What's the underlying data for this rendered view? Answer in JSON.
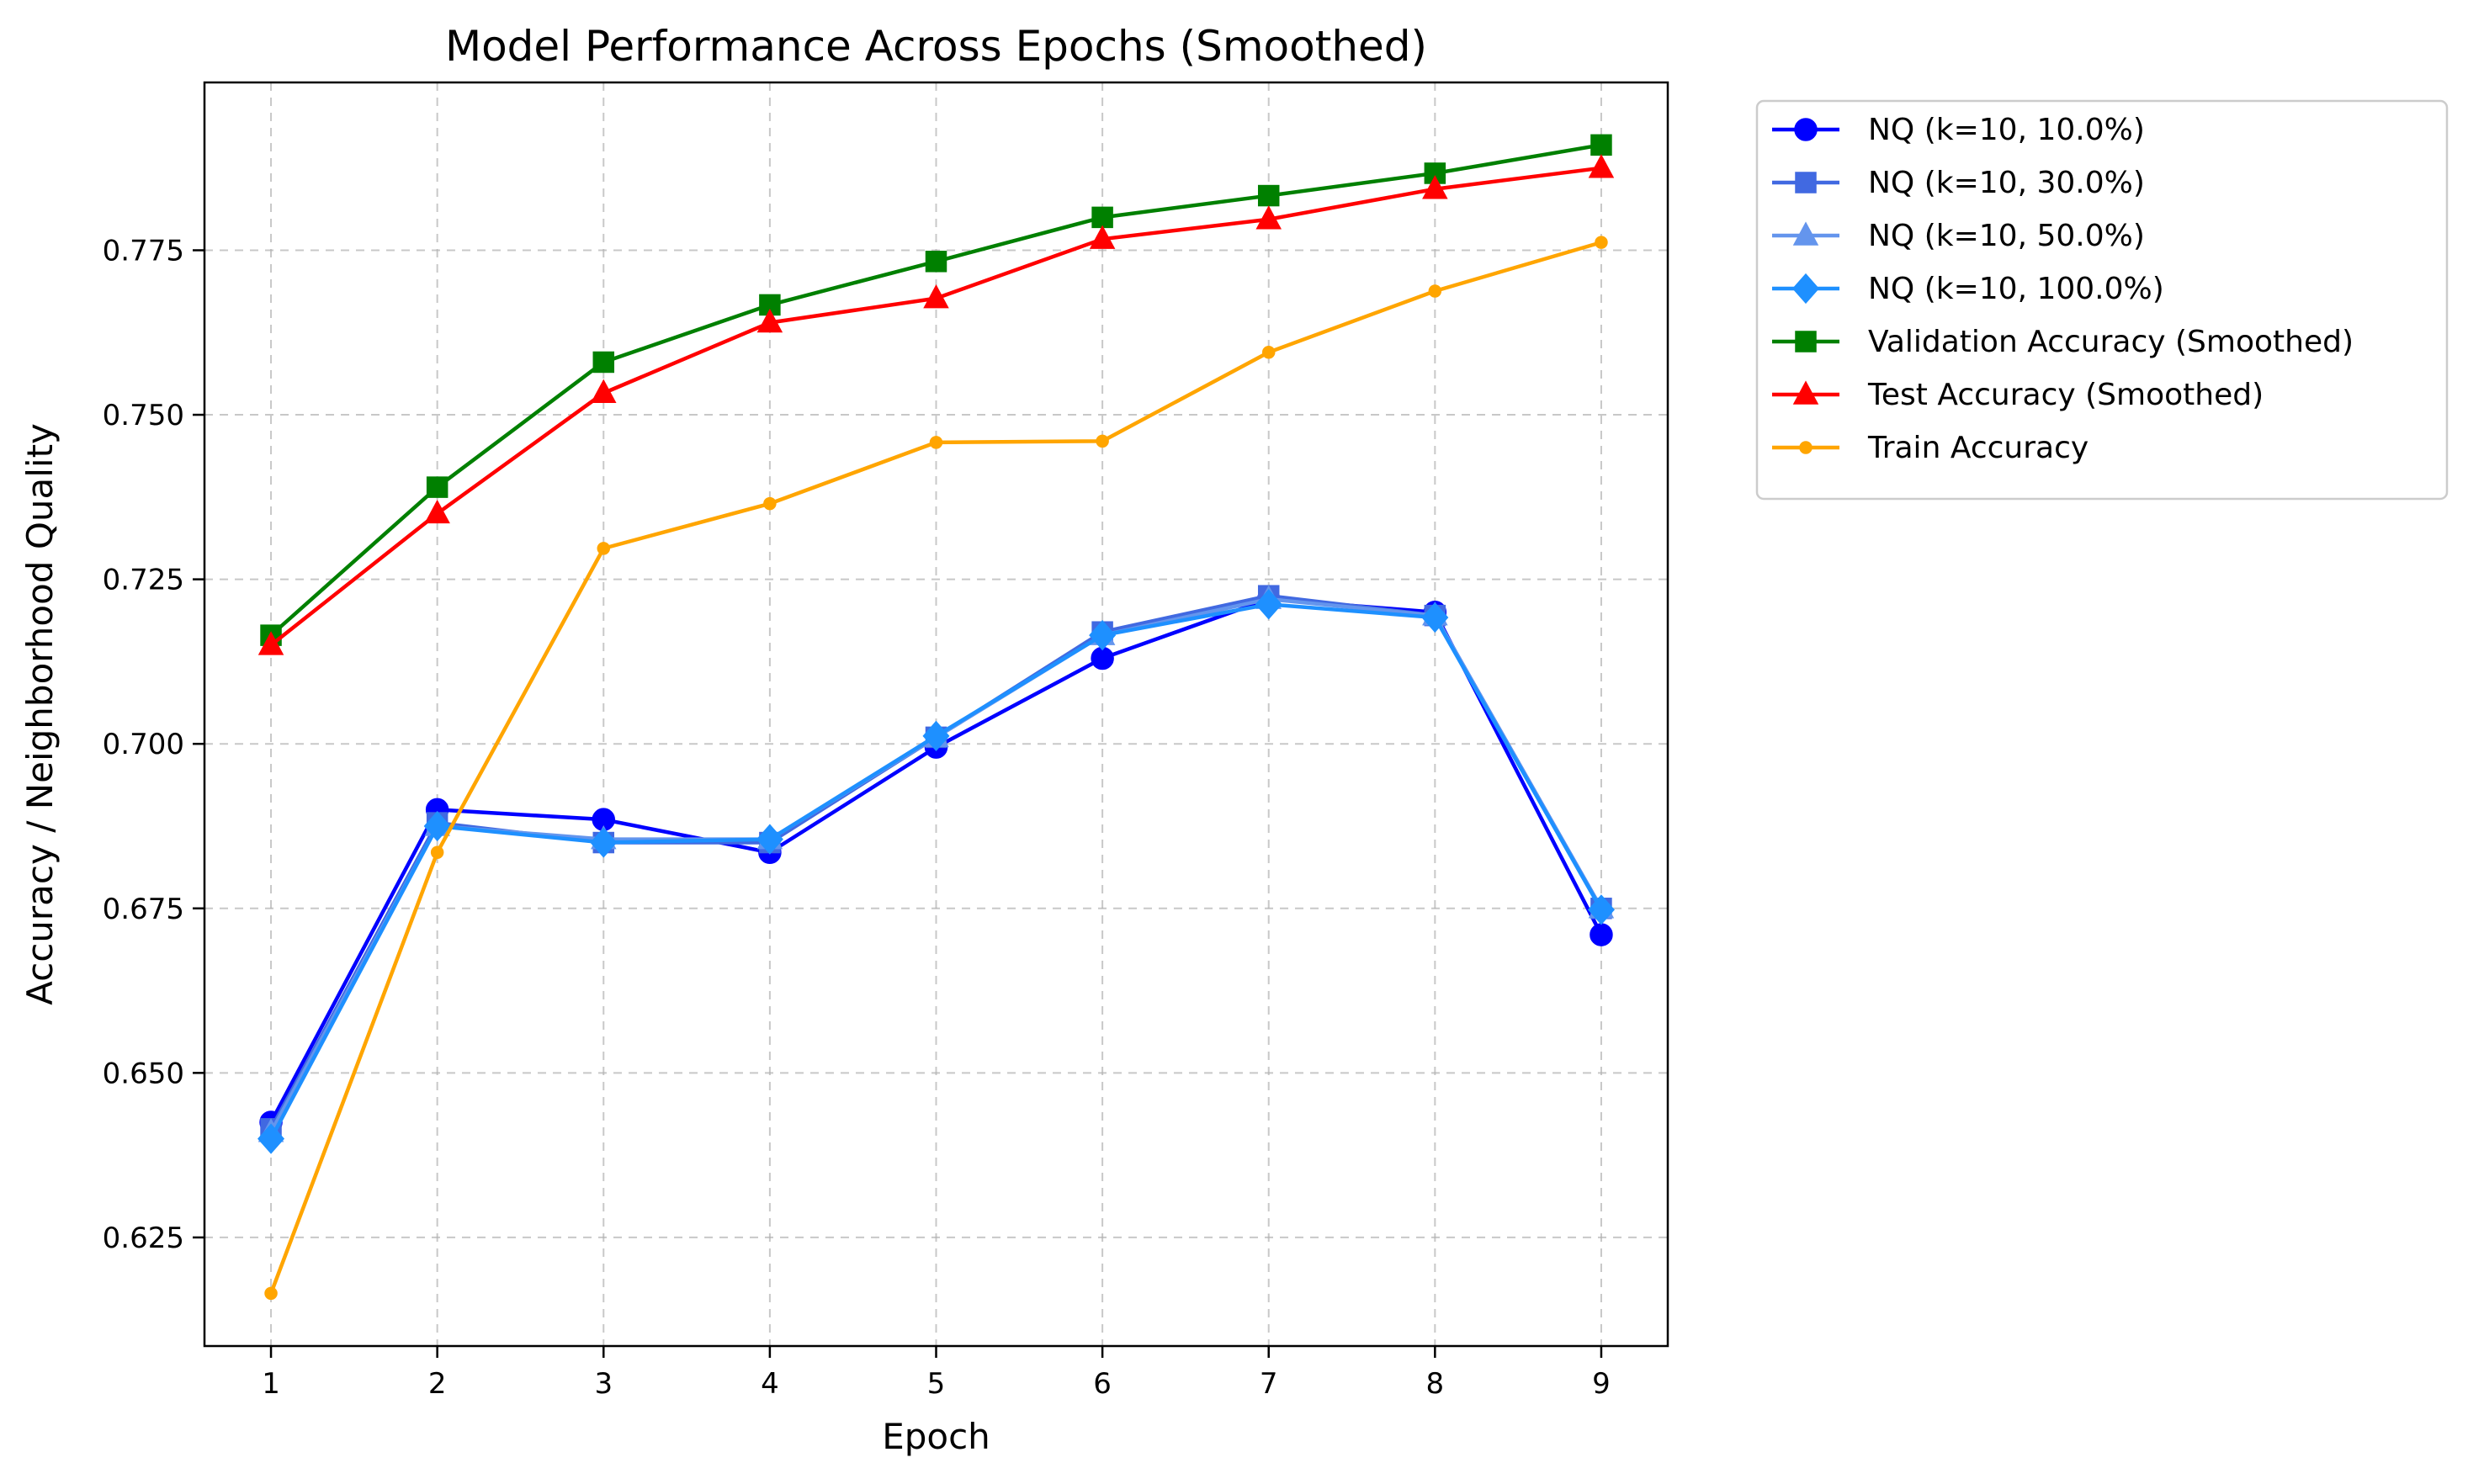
{
  "chart_data": {
    "type": "line",
    "title": "Model Performance Across Epochs (Smoothed)",
    "xlabel": "Epoch",
    "ylabel": "Accuracy / Neighborhood Quality",
    "x": [
      1,
      2,
      3,
      4,
      5,
      6,
      7,
      8,
      9
    ],
    "xticks": [
      "1",
      "2",
      "3",
      "4",
      "5",
      "6",
      "7",
      "8",
      "9"
    ],
    "yticks": [
      "0.625",
      "0.650",
      "0.675",
      "0.700",
      "0.725",
      "0.750",
      "0.775"
    ],
    "xlim": [
      0.6,
      9.4
    ],
    "ylim": [
      0.6085,
      0.8005
    ],
    "grid": true,
    "legend_position": "outside-right-top",
    "series": [
      {
        "name": "NQ (k=10, 10.0%)",
        "color": "#0000ff",
        "marker": "circle",
        "values": [
          0.6425,
          0.69,
          0.6885,
          0.6835,
          0.6995,
          0.713,
          0.722,
          0.72,
          0.671
        ]
      },
      {
        "name": "NQ (k=10, 30.0%)",
        "color": "#4169e1",
        "marker": "square",
        "values": [
          0.6415,
          0.688,
          0.685,
          0.685,
          0.701,
          0.717,
          0.7225,
          0.7195,
          0.675
        ]
      },
      {
        "name": "NQ (k=10, 50.0%)",
        "color": "#6495ed",
        "marker": "triangle",
        "values": [
          0.641,
          0.6875,
          0.6855,
          0.6855,
          0.701,
          0.7165,
          0.722,
          0.7195,
          0.675
        ]
      },
      {
        "name": "NQ (k=10, 100.0%)",
        "color": "#1e90ff",
        "marker": "diamond",
        "values": [
          0.64,
          0.6875,
          0.685,
          0.6855,
          0.7012,
          0.7165,
          0.7212,
          0.7192,
          0.6748
        ]
      },
      {
        "name": "Validation Accuracy (Smoothed)",
        "color": "#008000",
        "marker": "square",
        "values": [
          0.7165,
          0.739,
          0.758,
          0.7667,
          0.7733,
          0.78,
          0.7833,
          0.7867,
          0.791
        ]
      },
      {
        "name": "Test Accuracy (Smoothed)",
        "color": "#ff0000",
        "marker": "triangle",
        "values": [
          0.715,
          0.735,
          0.7533,
          0.764,
          0.7677,
          0.7767,
          0.7797,
          0.7843,
          0.7875
        ]
      },
      {
        "name": "Train Accuracy",
        "color": "#ffa500",
        "marker": "dot",
        "values": [
          0.6165,
          0.6835,
          0.7297,
          0.7365,
          0.7458,
          0.746,
          0.7595,
          0.7688,
          0.7762
        ]
      }
    ]
  }
}
